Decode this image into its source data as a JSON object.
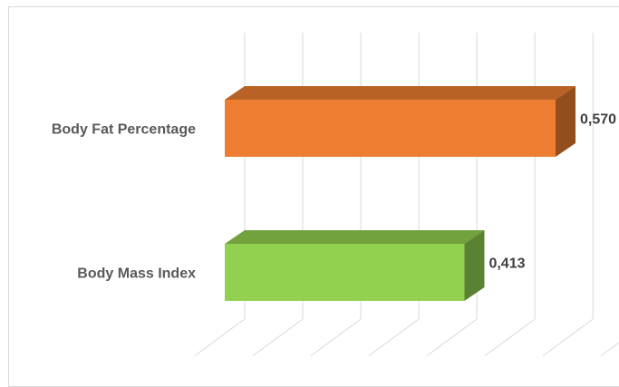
{
  "chart_data": {
    "type": "bar",
    "orientation": "horizontal",
    "three_d": true,
    "categories": [
      "Body Fat Percentage",
      "Body Mass Index"
    ],
    "values": [
      0.57,
      0.413
    ],
    "value_labels": [
      "0,570",
      "0,413"
    ],
    "colors": {
      "Body Fat Percentage": "#ED7D31",
      "Body Mass Index": "#92D050"
    },
    "title": "",
    "xlabel": "",
    "ylabel": "",
    "xlim": [
      0,
      0.7
    ],
    "grid": "vertical",
    "legend": "none"
  }
}
